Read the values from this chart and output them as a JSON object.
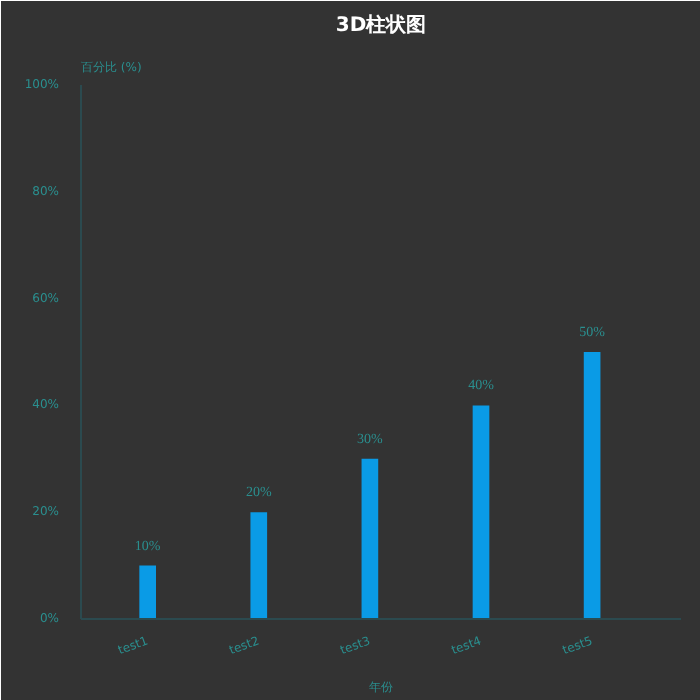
{
  "chart_data": {
    "type": "bar",
    "title": "3D柱状图",
    "xlabel": "年份",
    "ylabel": "百分比 (%)",
    "categories": [
      "test1",
      "test2",
      "test3",
      "test4",
      "test5"
    ],
    "values": [
      10,
      20,
      30,
      40,
      50
    ],
    "color": "#0a9be6",
    "value_labels": [
      "10%",
      "20%",
      "30%",
      "40%",
      "50%"
    ],
    "ylim": [
      0,
      100
    ],
    "yticks": [
      {
        "value": 0,
        "label": "0%"
      },
      {
        "value": 20,
        "label": "20%"
      },
      {
        "value": 40,
        "label": "40%"
      },
      {
        "value": 60,
        "label": "60%"
      },
      {
        "value": 80,
        "label": "80%"
      },
      {
        "value": 100,
        "label": "100%"
      }
    ],
    "grid": false
  }
}
